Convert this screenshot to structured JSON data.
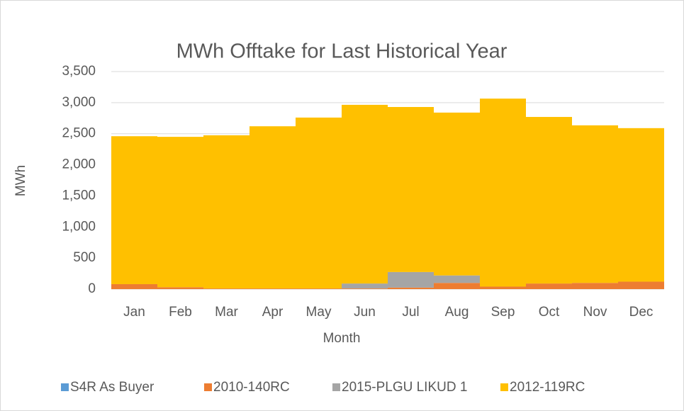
{
  "chart_data": {
    "type": "bar",
    "stacked": true,
    "title": "MWh Offtake for Last Historical Year",
    "x_label": "Month",
    "y_label": "MWh",
    "categories": [
      "Jan",
      "Feb",
      "Mar",
      "Apr",
      "May",
      "Jun",
      "Jul",
      "Aug",
      "Sep",
      "Oct",
      "Nov",
      "Dec"
    ],
    "series": [
      {
        "name": "S4R As Buyer",
        "color": "#5b9bd5",
        "values": [
          0,
          0,
          0,
          0,
          0,
          0,
          0,
          0,
          0,
          0,
          0,
          0
        ]
      },
      {
        "name": "2010-140RC",
        "color": "#ed7d31",
        "values": [
          80,
          30,
          10,
          10,
          10,
          10,
          25,
          100,
          40,
          90,
          100,
          120
        ]
      },
      {
        "name": "2015-PLGU LIKUD 1",
        "color": "#a5a5a5",
        "values": [
          0,
          0,
          0,
          0,
          0,
          80,
          250,
          120,
          0,
          0,
          0,
          0
        ]
      },
      {
        "name": "2012-119RC",
        "color": "#ffc000",
        "values": [
          2380,
          2420,
          2465,
          2610,
          2750,
          2875,
          2655,
          2620,
          3025,
          2680,
          2535,
          2470
        ]
      }
    ],
    "ylim": [
      0,
      3500
    ],
    "yticks": [
      0,
      500,
      {
        "value": 1000,
        "label": "1,000"
      },
      {
        "value": 1500,
        "label": "1,500"
      },
      {
        "value": 2000,
        "label": "2,000"
      },
      {
        "value": 2500,
        "label": "2,500"
      },
      {
        "value": 3000,
        "label": "3,000"
      },
      {
        "value": 3500,
        "label": "3,500"
      }
    ],
    "grid": true,
    "legend": "bottom"
  }
}
